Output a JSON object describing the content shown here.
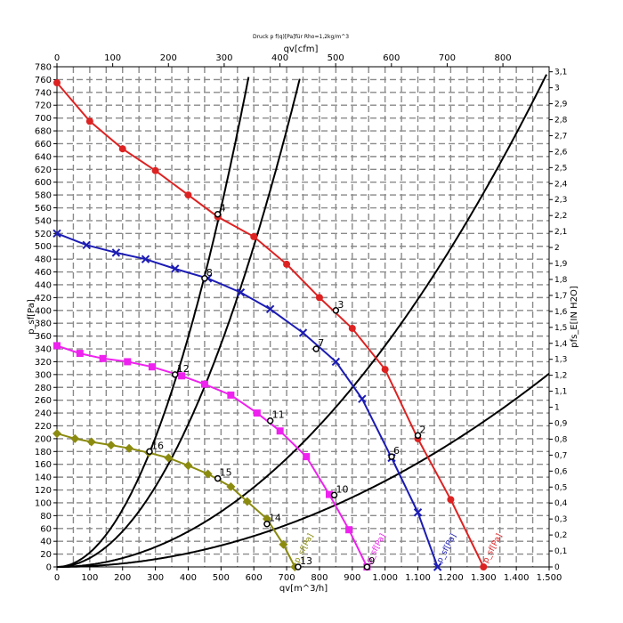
{
  "chart_data": {
    "type": "line",
    "title": "Druck p f(q)[Pa]für Rho=1,2kg/m^3",
    "xlabel": "qv[m^3/h]",
    "x_top_label": "qv[cfm]",
    "ylabel": "p_sf[Pa]",
    "y_right_label": "pfs_E[IN H2O]",
    "xlim": [
      0,
      1500
    ],
    "ylim": [
      0,
      780
    ],
    "x_top_lim": [
      0,
      882.9
    ],
    "y_right_lim": [
      0,
      3.1316
    ],
    "x_ticks": [
      0,
      100,
      200,
      300,
      400,
      500,
      600,
      700,
      800,
      900,
      1000,
      1100,
      1200,
      1300,
      1400,
      1500
    ],
    "x_tick_labels": [
      "0",
      "100",
      "200",
      "300",
      "400",
      "500",
      "600",
      "700",
      "800",
      "900",
      "1.000",
      "1.100",
      "1.200",
      "1.300",
      "1.400",
      "1.500"
    ],
    "x_top_ticks": [
      0,
      100,
      200,
      300,
      400,
      500,
      600,
      700,
      800
    ],
    "y_ticks": [
      0,
      20,
      40,
      60,
      80,
      100,
      120,
      140,
      160,
      180,
      200,
      220,
      240,
      260,
      280,
      300,
      320,
      340,
      360,
      380,
      400,
      420,
      440,
      460,
      480,
      500,
      520,
      540,
      560,
      580,
      600,
      620,
      640,
      660,
      680,
      700,
      720,
      740,
      760,
      780
    ],
    "y_right_ticks": [
      "0",
      "0,1",
      "0,2",
      "0,3",
      "0,4",
      "0,5",
      "0,6",
      "0,7",
      "0,8",
      "0,9",
      "1",
      "1,1",
      "1,2",
      "1,3",
      "1,4",
      "1,5",
      "1,6",
      "1,7",
      "1,8",
      "1,9",
      "2",
      "2,1",
      "2,2",
      "2,3",
      "2,4",
      "2,5",
      "2,6",
      "2,7",
      "2,8",
      "2,9",
      "3",
      "3,1"
    ],
    "grid": true,
    "series": [
      {
        "name": "p_sf[Pa]",
        "color": "#dd2222",
        "marker": "circle",
        "x": [
          0,
          100,
          200,
          300,
          400,
          490,
          600,
          700,
          800,
          900,
          1000,
          1100,
          1200,
          1300
        ],
        "y": [
          755,
          695,
          652,
          618,
          580,
          546,
          515,
          472,
          420,
          372,
          308,
          200,
          105,
          0
        ]
      },
      {
        "name": "p_sf[Pa]",
        "color": "#1c1cb4",
        "marker": "x",
        "x": [
          0,
          90,
          180,
          270,
          360,
          460,
          560,
          650,
          750,
          850,
          930,
          1020,
          1100,
          1160
        ],
        "y": [
          520,
          502,
          490,
          480,
          465,
          450,
          428,
          402,
          365,
          320,
          262,
          170,
          85,
          0
        ]
      },
      {
        "name": "p_sf[Pa]",
        "color": "#ee22ee",
        "marker": "square",
        "x": [
          0,
          70,
          140,
          215,
          290,
          380,
          450,
          530,
          610,
          680,
          760,
          830,
          890,
          945
        ],
        "y": [
          345,
          333,
          325,
          320,
          312,
          298,
          285,
          268,
          240,
          212,
          172,
          113,
          58,
          0
        ]
      },
      {
        "name": "p_sf[Pa]",
        "color": "#8b8b10",
        "marker": "diamond",
        "x": [
          0,
          55,
          105,
          165,
          220,
          280,
          340,
          400,
          460,
          530,
          580,
          640,
          690,
          725
        ],
        "y": [
          208,
          200,
          195,
          190,
          185,
          178,
          170,
          158,
          145,
          125,
          102,
          75,
          35,
          0
        ]
      }
    ],
    "system_curves": [
      {
        "k": 0.000134
      },
      {
        "k": 0.000345
      },
      {
        "k": 0.00139
      },
      {
        "k": 0.00224
      }
    ],
    "operating_points": [
      {
        "label": "2",
        "x": 1100,
        "y": 205
      },
      {
        "label": "3",
        "x": 850,
        "y": 400
      },
      {
        "label": "4",
        "x": 490,
        "y": 550
      },
      {
        "label": "6",
        "x": 1020,
        "y": 172
      },
      {
        "label": "7",
        "x": 790,
        "y": 340
      },
      {
        "label": "8",
        "x": 450,
        "y": 450
      },
      {
        "label": "9",
        "x": 945,
        "y": 0
      },
      {
        "label": "10",
        "x": 845,
        "y": 112
      },
      {
        "label": "11",
        "x": 650,
        "y": 228
      },
      {
        "label": "12",
        "x": 360,
        "y": 300
      },
      {
        "label": "13",
        "x": 735,
        "y": 0
      },
      {
        "label": "14",
        "x": 640,
        "y": 67
      },
      {
        "label": "15",
        "x": 490,
        "y": 138
      },
      {
        "label": "16",
        "x": 282,
        "y": 180
      }
    ],
    "curve_end_labels": [
      "p_sf[Pa]",
      "p_sf[Pa]",
      "p_sf[Pa]",
      "p_sf[Pa]"
    ]
  }
}
